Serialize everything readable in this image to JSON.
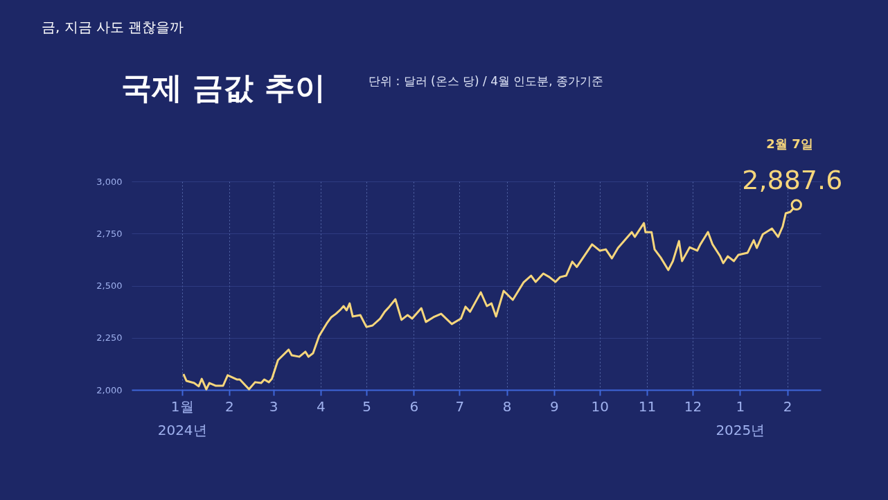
{
  "chart_data": {
    "type": "line",
    "title": "국제 금값 추이",
    "subtitle": "단위 : 달러 (온스 당) / 4월 인도분, 종가기준",
    "annotations": [
      "금, 지금 사도 괜찮을까",
      "2월 7일",
      {
        "text": "2,887.6",
        "x": "2025-02-07",
        "y": 2887.6
      }
    ],
    "xlim": [
      "2023-11-29",
      "2025-02-23"
    ],
    "ylim": [
      2000,
      3000
    ],
    "xticks": [
      {
        "value": "2024-01-01",
        "label": "1월\n2024년"
      },
      {
        "value": "2024-02-01",
        "label": "2"
      },
      {
        "value": "2024-03-01",
        "label": "3"
      },
      {
        "value": "2024-04-01",
        "label": "4"
      },
      {
        "value": "2024-05-01",
        "label": "5"
      },
      {
        "value": "2024-06-01",
        "label": "6"
      },
      {
        "value": "2024-07-01",
        "label": "7"
      },
      {
        "value": "2024-08-01",
        "label": "8"
      },
      {
        "value": "2024-09-01",
        "label": "9"
      },
      {
        "value": "2024-10-01",
        "label": "10"
      },
      {
        "value": "2024-11-01",
        "label": "11"
      },
      {
        "value": "2024-12-01",
        "label": "12"
      },
      {
        "value": "2025-01-01",
        "label": "1\n2025년"
      },
      {
        "value": "2025-02-01",
        "label": "2"
      }
    ],
    "yticks": [
      {
        "value": 2000,
        "label": "2,000"
      },
      {
        "value": 2250,
        "label": "2,250"
      },
      {
        "value": 2500,
        "label": "2,500"
      },
      {
        "value": 2750,
        "label": "2,750"
      },
      {
        "value": 3000,
        "label": "3,000"
      }
    ],
    "grid": true,
    "series": [
      {
        "color": "#f6d67c",
        "marker": "none",
        "line_style": "solid",
        "x": [
          "2024-01-02",
          "2024-01-04",
          "2024-01-09",
          "2024-01-12",
          "2024-01-14",
          "2024-01-17",
          "2024-01-19",
          "2024-01-23",
          "2024-01-28",
          "2024-01-31",
          "2024-02-06",
          "2024-02-08",
          "2024-02-14",
          "2024-02-18",
          "2024-02-22",
          "2024-02-24",
          "2024-02-27",
          "2024-02-29",
          "2024-03-04",
          "2024-03-11",
          "2024-03-13",
          "2024-03-18",
          "2024-03-22",
          "2024-03-24",
          "2024-03-27",
          "2024-03-31",
          "2024-04-05",
          "2024-04-08",
          "2024-04-11",
          "2024-04-14",
          "2024-04-16",
          "2024-04-18",
          "2024-04-20",
          "2024-04-22",
          "2024-04-27",
          "2024-05-01",
          "2024-05-05",
          "2024-05-10",
          "2024-05-13",
          "2024-05-16",
          "2024-05-20",
          "2024-05-24",
          "2024-05-28",
          "2024-05-31",
          "2024-06-06",
          "2024-06-09",
          "2024-06-14",
          "2024-06-19",
          "2024-06-26",
          "2024-07-02",
          "2024-07-05",
          "2024-07-08",
          "2024-07-15",
          "2024-07-19",
          "2024-07-22",
          "2024-07-25",
          "2024-07-30",
          "2024-08-05",
          "2024-08-12",
          "2024-08-17",
          "2024-08-20",
          "2024-08-25",
          "2024-08-29",
          "2024-09-02",
          "2024-09-05",
          "2024-09-09",
          "2024-09-13",
          "2024-09-16",
          "2024-09-26",
          "2024-10-01",
          "2024-10-05",
          "2024-10-09",
          "2024-10-13",
          "2024-10-22",
          "2024-10-24",
          "2024-10-30",
          "2024-10-31",
          "2024-11-04",
          "2024-11-06",
          "2024-11-10",
          "2024-11-15",
          "2024-11-18",
          "2024-11-22",
          "2024-11-24",
          "2024-11-29",
          "2024-12-04",
          "2024-12-06",
          "2024-12-11",
          "2024-12-14",
          "2024-12-19",
          "2024-12-21",
          "2024-12-24",
          "2024-12-28",
          "2024-12-31",
          "2025-01-06",
          "2025-01-10",
          "2025-01-12",
          "2025-01-16",
          "2025-01-22",
          "2025-01-26",
          "2025-01-29",
          "2025-01-31",
          "2025-02-03",
          "2025-02-07"
        ],
        "values": [
          2076,
          2043,
          2033,
          2017,
          2053,
          2003,
          2033,
          2020,
          2020,
          2070,
          2050,
          2050,
          2003,
          2037,
          2033,
          2050,
          2037,
          2053,
          2143,
          2193,
          2166,
          2159,
          2183,
          2159,
          2176,
          2259,
          2319,
          2349,
          2365,
          2385,
          2402,
          2382,
          2415,
          2352,
          2359,
          2302,
          2309,
          2342,
          2375,
          2399,
          2435,
          2336,
          2359,
          2342,
          2392,
          2326,
          2349,
          2365,
          2316,
          2342,
          2399,
          2375,
          2468,
          2402,
          2415,
          2352,
          2475,
          2432,
          2515,
          2548,
          2518,
          2558,
          2541,
          2518,
          2541,
          2548,
          2615,
          2590,
          2698,
          2668,
          2674,
          2631,
          2681,
          2757,
          2734,
          2800,
          2757,
          2757,
          2674,
          2635,
          2575,
          2618,
          2714,
          2618,
          2684,
          2668,
          2698,
          2757,
          2698,
          2641,
          2608,
          2641,
          2618,
          2648,
          2658,
          2718,
          2681,
          2747,
          2774,
          2734,
          2784,
          2847,
          2854,
          2887.6
        ]
      },
      {
        "type": "scatter",
        "color": "#f6d67c",
        "marker": "circle",
        "x": [
          "2025-02-07"
        ],
        "values": [
          2887.6
        ]
      }
    ]
  }
}
